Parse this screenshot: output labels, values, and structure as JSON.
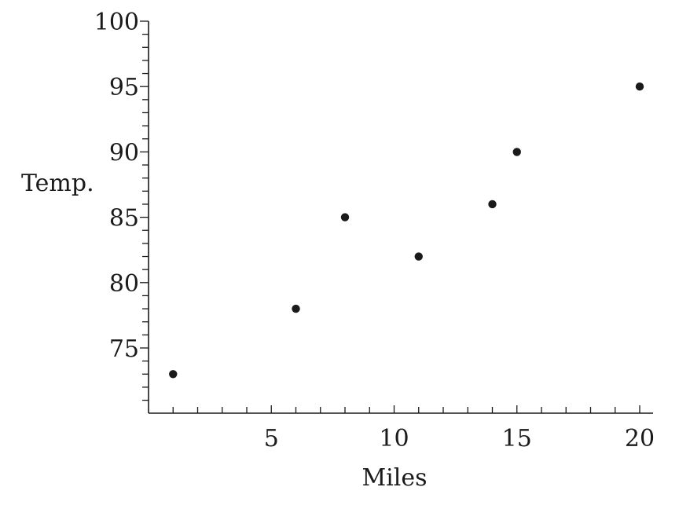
{
  "chart_data": {
    "type": "scatter",
    "xlabel": "Miles",
    "ylabel": "Temp.",
    "xlim": [
      0,
      20
    ],
    "ylim": [
      70,
      100
    ],
    "xticks_major": [
      5,
      10,
      15,
      20
    ],
    "xticks_minor_step": 1,
    "yticks_major": [
      75,
      80,
      85,
      90,
      95,
      100
    ],
    "yticks_minor_step": 1,
    "grid": false,
    "points": [
      {
        "x": 1,
        "y": 73
      },
      {
        "x": 6,
        "y": 78
      },
      {
        "x": 8,
        "y": 85
      },
      {
        "x": 11,
        "y": 82
      },
      {
        "x": 14,
        "y": 86
      },
      {
        "x": 15,
        "y": 90
      },
      {
        "x": 20,
        "y": 95
      }
    ],
    "point_color": "#1a1a1a"
  }
}
